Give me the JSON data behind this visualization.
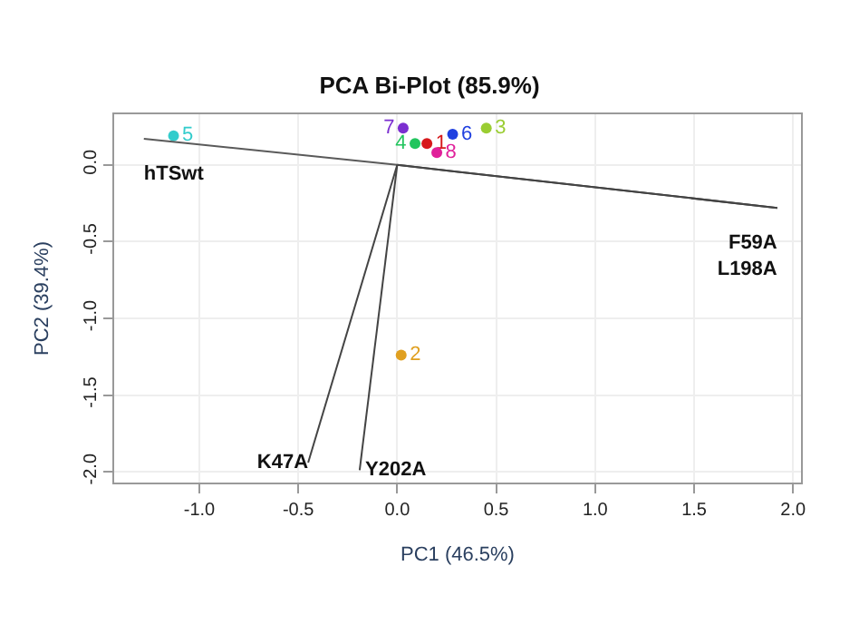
{
  "chart_data": {
    "type": "scatter",
    "title": "PCA Bi-Plot (85.9%)",
    "xlabel": "PC1 (46.5%)",
    "ylabel": "PC2 (39.4%)",
    "xlim": [
      -1.43,
      2.04
    ],
    "ylim": [
      -2.07,
      0.33
    ],
    "xticks": [
      {
        "value": -1.0,
        "label": "-1.0"
      },
      {
        "value": -0.5,
        "label": "-0.5"
      },
      {
        "value": 0.0,
        "label": "0.0"
      },
      {
        "value": 0.5,
        "label": "0.5"
      },
      {
        "value": 1.0,
        "label": "1.0"
      },
      {
        "value": 1.5,
        "label": "1.5"
      },
      {
        "value": 2.0,
        "label": "2.0"
      }
    ],
    "yticks": [
      {
        "value": -2.0,
        "label": "-2.0"
      },
      {
        "value": -1.5,
        "label": "-1.5"
      },
      {
        "value": -1.0,
        "label": "-1.0"
      },
      {
        "value": -0.5,
        "label": "-0.5"
      },
      {
        "value": 0.0,
        "label": "0.0"
      }
    ],
    "grid": true,
    "marker": "circle",
    "series": [
      {
        "name": "1",
        "color": "#d7191c",
        "x": [
          0.15
        ],
        "values": [
          0.14
        ]
      },
      {
        "name": "2",
        "color": "#e0a020",
        "x": [
          0.02
        ],
        "values": [
          -1.24
        ]
      },
      {
        "name": "3",
        "color": "#9acd32",
        "x": [
          0.45
        ],
        "values": [
          0.24
        ]
      },
      {
        "name": "4",
        "color": "#22c55e",
        "x": [
          0.09
        ],
        "values": [
          0.14
        ]
      },
      {
        "name": "5",
        "color": "#33cccc",
        "x": [
          -1.13
        ],
        "values": [
          0.19
        ]
      },
      {
        "name": "6",
        "color": "#2040e0",
        "x": [
          0.28
        ],
        "values": [
          0.2
        ]
      },
      {
        "name": "7",
        "color": "#7b2fd0",
        "x": [
          0.03
        ],
        "values": [
          0.24
        ]
      },
      {
        "name": "8",
        "color": "#e0209a",
        "x": [
          0.2
        ],
        "values": [
          0.08
        ]
      },
      {
        "name": "hTSwt",
        "type": "line",
        "marker": "none",
        "color": "#5a5a5a",
        "x": [
          0,
          -1.28
        ],
        "values": [
          0,
          0.17
        ]
      },
      {
        "name": "F59A",
        "type": "line",
        "marker": "none",
        "color": "#444444",
        "x": [
          0,
          1.92
        ],
        "values": [
          0,
          -0.28
        ]
      },
      {
        "name": "L198A",
        "type": "line",
        "marker": "none",
        "color": "#444444",
        "x": [
          0,
          1.92
        ],
        "values": [
          0,
          -0.28
        ]
      },
      {
        "name": "K47A",
        "type": "line",
        "marker": "none",
        "color": "#444444",
        "x": [
          0,
          -0.45
        ],
        "values": [
          0,
          -1.94
        ]
      },
      {
        "name": "Y202A",
        "type": "line",
        "marker": "none",
        "color": "#444444",
        "x": [
          0,
          -0.19
        ],
        "values": [
          0,
          -1.99
        ]
      }
    ]
  }
}
